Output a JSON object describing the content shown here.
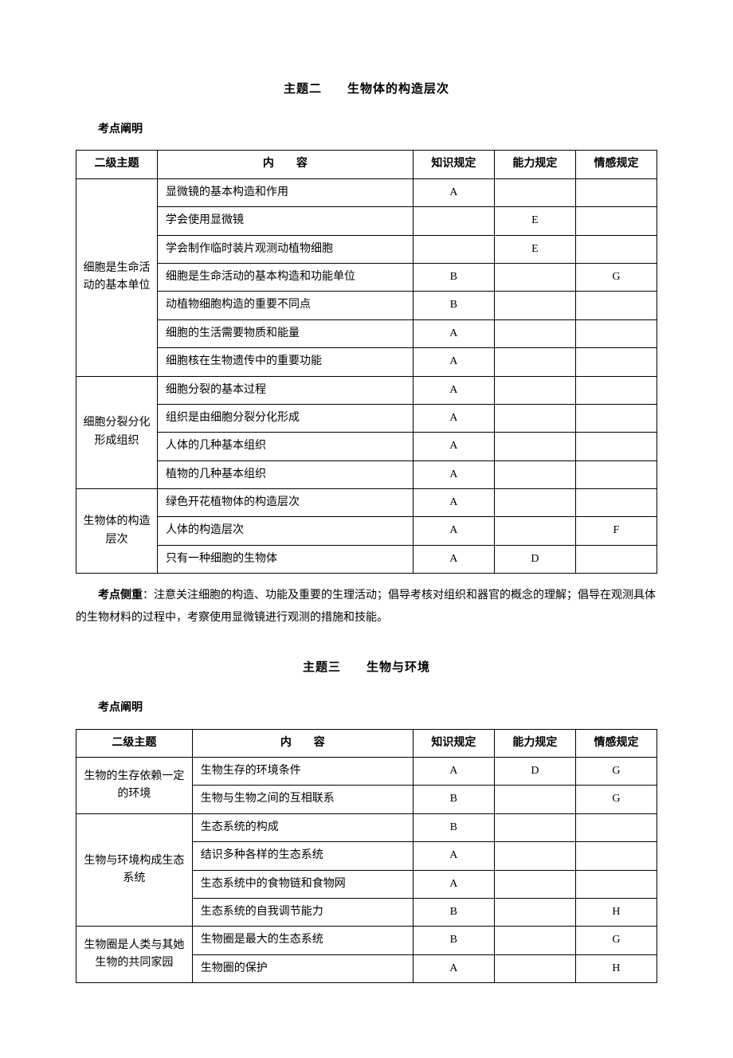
{
  "section2": {
    "title": "主题二　　生物体的构造层次",
    "subhead": "考点阐明",
    "headers": {
      "topic": "二级主题",
      "content": "内　　容",
      "knowledge": "知识规定",
      "ability": "能力规定",
      "emotion": "情感规定"
    },
    "groups": [
      {
        "topic": "细胞是生命活动的基本单位",
        "rows": [
          {
            "content": "显微镜的基本构造和作用",
            "k": "A",
            "a": "",
            "e": ""
          },
          {
            "content": "学会使用显微镜",
            "k": "",
            "a": "E",
            "e": ""
          },
          {
            "content": "学会制作临时装片观测动植物细胞",
            "k": "",
            "a": "E",
            "e": ""
          },
          {
            "content": "细胞是生命活动的基本构造和功能单位",
            "k": "B",
            "a": "",
            "e": "G"
          },
          {
            "content": "动植物细胞构造的重要不同点",
            "k": "B",
            "a": "",
            "e": ""
          },
          {
            "content": "细胞的生活需要物质和能量",
            "k": "A",
            "a": "",
            "e": ""
          },
          {
            "content": "细胞核在生物遗传中的重要功能",
            "k": "A",
            "a": "",
            "e": ""
          }
        ]
      },
      {
        "topic": "细胞分裂分化形成组织",
        "rows": [
          {
            "content": "细胞分裂的基本过程",
            "k": "A",
            "a": "",
            "e": ""
          },
          {
            "content": "组织是由细胞分裂分化形成",
            "k": "A",
            "a": "",
            "e": ""
          },
          {
            "content": "人体的几种基本组织",
            "k": "A",
            "a": "",
            "e": ""
          },
          {
            "content": "植物的几种基本组织",
            "k": "A",
            "a": "",
            "e": ""
          }
        ]
      },
      {
        "topic": "生物体的构造层次",
        "rows": [
          {
            "content": "绿色开花植物体的构造层次",
            "k": "A",
            "a": "",
            "e": ""
          },
          {
            "content": "人体的构造层次",
            "k": "A",
            "a": "",
            "e": "F"
          },
          {
            "content": "只有一种细胞的生物体",
            "k": "A",
            "a": "D",
            "e": ""
          }
        ]
      }
    ],
    "emphasis_label": "考点侧重",
    "emphasis_text": "：注意关注细胞的构造、功能及重要的生理活动；倡导考核对组织和器官的概念的理解；倡导在观测具体的生物材料的过程中，考察使用显微镜进行观测的措施和技能。"
  },
  "section3": {
    "title": "主题三　　生物与环境",
    "subhead": "考点阐明",
    "headers": {
      "topic": "二级主题",
      "content": "内　　容",
      "knowledge": "知识规定",
      "ability": "能力规定",
      "emotion": "情感规定"
    },
    "groups": [
      {
        "topic": "生物的生存依赖一定的环境",
        "rows": [
          {
            "content": "生物生存的环境条件",
            "k": "A",
            "a": "D",
            "e": "G"
          },
          {
            "content": "生物与生物之间的互相联系",
            "k": "B",
            "a": "",
            "e": "G"
          }
        ]
      },
      {
        "topic": "生物与环境构成生态系统",
        "rows": [
          {
            "content": "生态系统的构成",
            "k": "B",
            "a": "",
            "e": ""
          },
          {
            "content": "结识多种各样的生态系统",
            "k": "A",
            "a": "",
            "e": ""
          },
          {
            "content": "生态系统中的食物链和食物网",
            "k": "A",
            "a": "",
            "e": ""
          },
          {
            "content": "生态系统的自我调节能力",
            "k": "B",
            "a": "",
            "e": "H"
          }
        ]
      },
      {
        "topic": "生物圈是人类与其她生物的共同家园",
        "rows": [
          {
            "content": "生物圈是最大的生态系统",
            "k": "B",
            "a": "",
            "e": "G"
          },
          {
            "content": "生物圈的保护",
            "k": "A",
            "a": "",
            "e": "H"
          }
        ]
      }
    ]
  }
}
